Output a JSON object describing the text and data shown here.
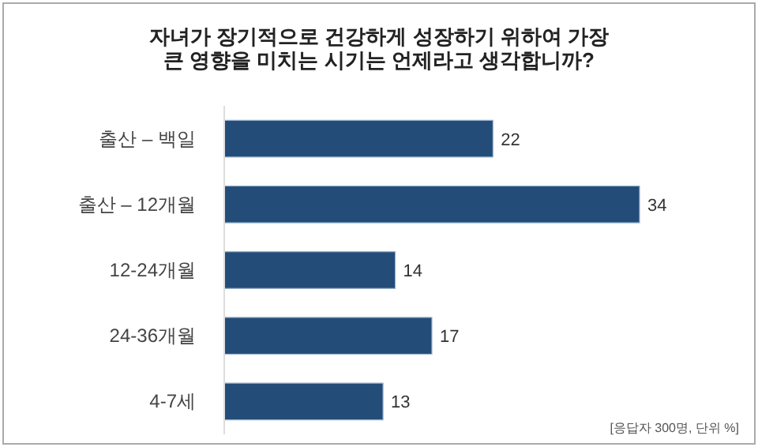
{
  "chart_data": {
    "type": "bar",
    "orientation": "horizontal",
    "title": "자녀가 장기적으로 건강하게 성장하기 위하여 가장 큰 영향을 미치는 시기는 언제라고 생각합니까?",
    "categories": [
      "출산 – 백일",
      "출산 – 12개월",
      "12-24개월",
      "24-36개월",
      "4-7세"
    ],
    "values": [
      22,
      34,
      14,
      17,
      13
    ],
    "color": "#234d78",
    "data_labels": true,
    "annotations": [
      "[응답자 300명, 단위 %]"
    ]
  }
}
